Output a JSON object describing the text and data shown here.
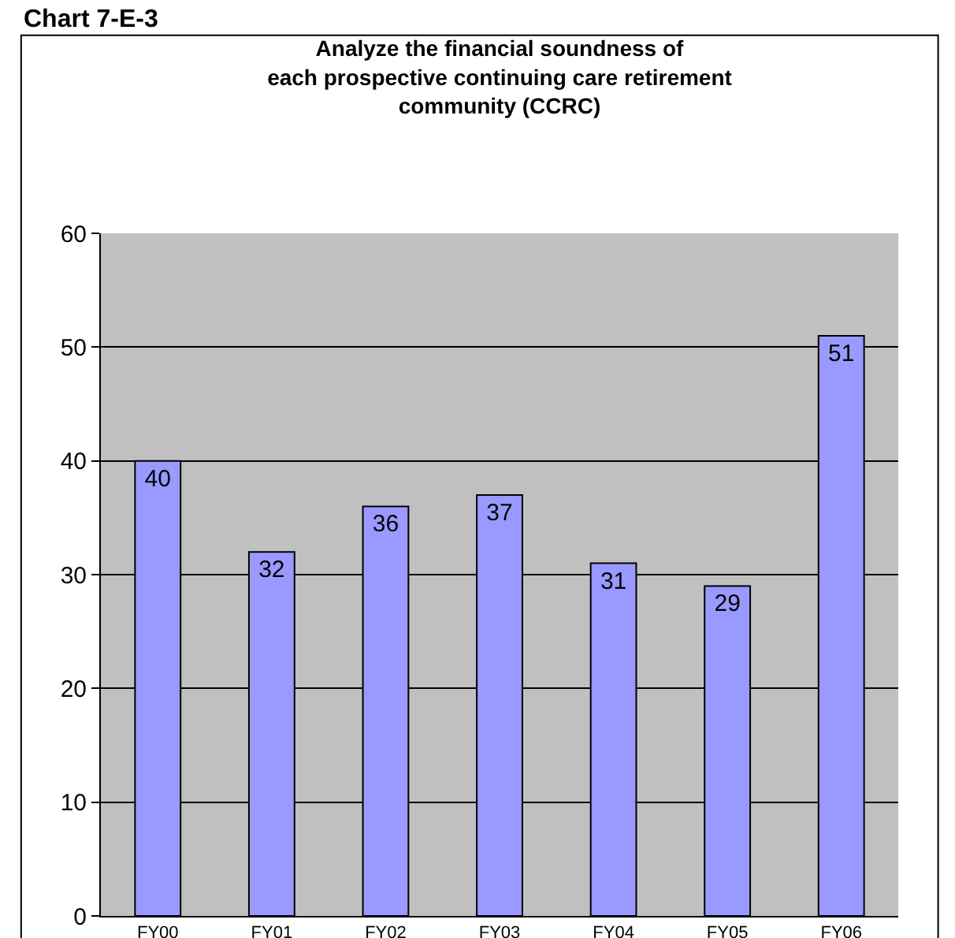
{
  "chart_data": {
    "type": "bar",
    "title": "Analyze the financial soundness of\neach prospective continuing care retirement\ncommunity (CCRC)",
    "annotations": [
      "Chart 7-E-3"
    ],
    "categories": [
      "FY00",
      "FY01",
      "FY02",
      "FY03",
      "FY04",
      "FY05",
      "FY06"
    ],
    "values": [
      40,
      32,
      36,
      37,
      31,
      29,
      51
    ],
    "color": "#9999ff",
    "data_labels": true,
    "ylim": [
      0,
      60
    ],
    "yticks": [
      0,
      10,
      20,
      30,
      40,
      50,
      60
    ],
    "grid": "y"
  }
}
